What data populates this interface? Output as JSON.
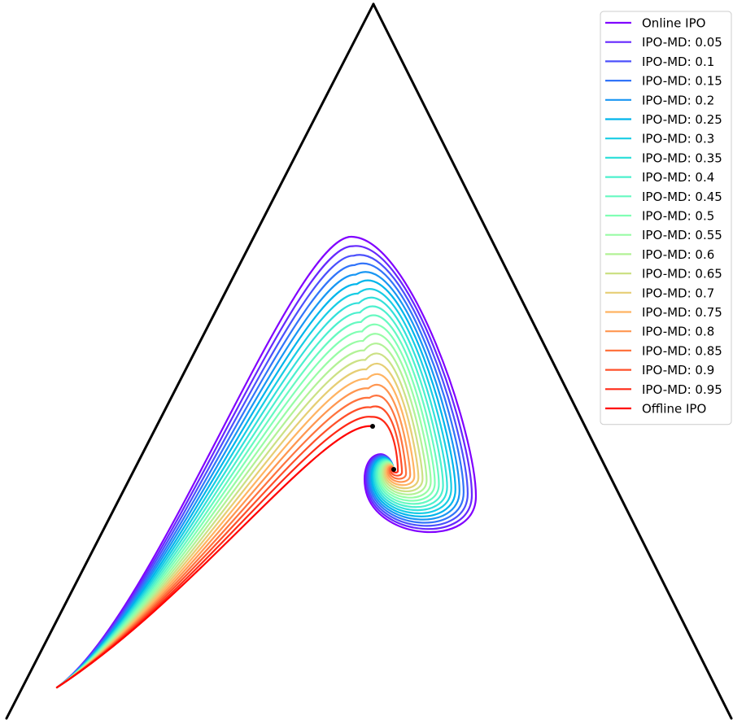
{
  "chart_data": {
    "type": "line",
    "plot": "simplex trajectories",
    "title": "",
    "xlabel": "",
    "ylabel": "",
    "grid": false,
    "legend_position": "upper right",
    "series": [
      {
        "name": "Online IPO",
        "color": "#8000ff",
        "mix": 0.0
      },
      {
        "name": "IPO-MD: 0.05",
        "color": "#6629fe",
        "mix": 0.05
      },
      {
        "name": "IPO-MD: 0.1",
        "color": "#4c50fc",
        "mix": 0.1
      },
      {
        "name": "IPO-MD: 0.15",
        "color": "#3274f9",
        "mix": 0.15
      },
      {
        "name": "IPO-MD: 0.2",
        "color": "#1996f3",
        "mix": 0.2
      },
      {
        "name": "IPO-MD: 0.25",
        "color": "#00b5eb",
        "mix": 0.25
      },
      {
        "name": "IPO-MD: 0.3",
        "color": "#18cde4",
        "mix": 0.3
      },
      {
        "name": "IPO-MD: 0.35",
        "color": "#32e0da",
        "mix": 0.35
      },
      {
        "name": "IPO-MD: 0.4",
        "color": "#4cf0ce",
        "mix": 0.4
      },
      {
        "name": "IPO-MD: 0.45",
        "color": "#66f9c1",
        "mix": 0.45
      },
      {
        "name": "IPO-MD: 0.5",
        "color": "#80ffb4",
        "mix": 0.5
      },
      {
        "name": "IPO-MD: 0.55",
        "color": "#98fca5",
        "mix": 0.55
      },
      {
        "name": "IPO-MD: 0.6",
        "color": "#b2f296",
        "mix": 0.6
      },
      {
        "name": "IPO-MD: 0.65",
        "color": "#cce185",
        "mix": 0.65
      },
      {
        "name": "IPO-MD: 0.7",
        "color": "#e6ce74",
        "mix": 0.7
      },
      {
        "name": "IPO-MD: 0.75",
        "color": "#ffb462",
        "mix": 0.75
      },
      {
        "name": "IPO-MD: 0.8",
        "color": "#ff9650",
        "mix": 0.8
      },
      {
        "name": "IPO-MD: 0.85",
        "color": "#ff733e",
        "mix": 0.85
      },
      {
        "name": "IPO-MD: 0.9",
        "color": "#ff502a",
        "mix": 0.9
      },
      {
        "name": "IPO-MD: 0.95",
        "color": "#ff2916",
        "mix": 0.95
      },
      {
        "name": "Offline IPO",
        "color": "#ff0000",
        "mix": 1.0
      }
    ]
  }
}
